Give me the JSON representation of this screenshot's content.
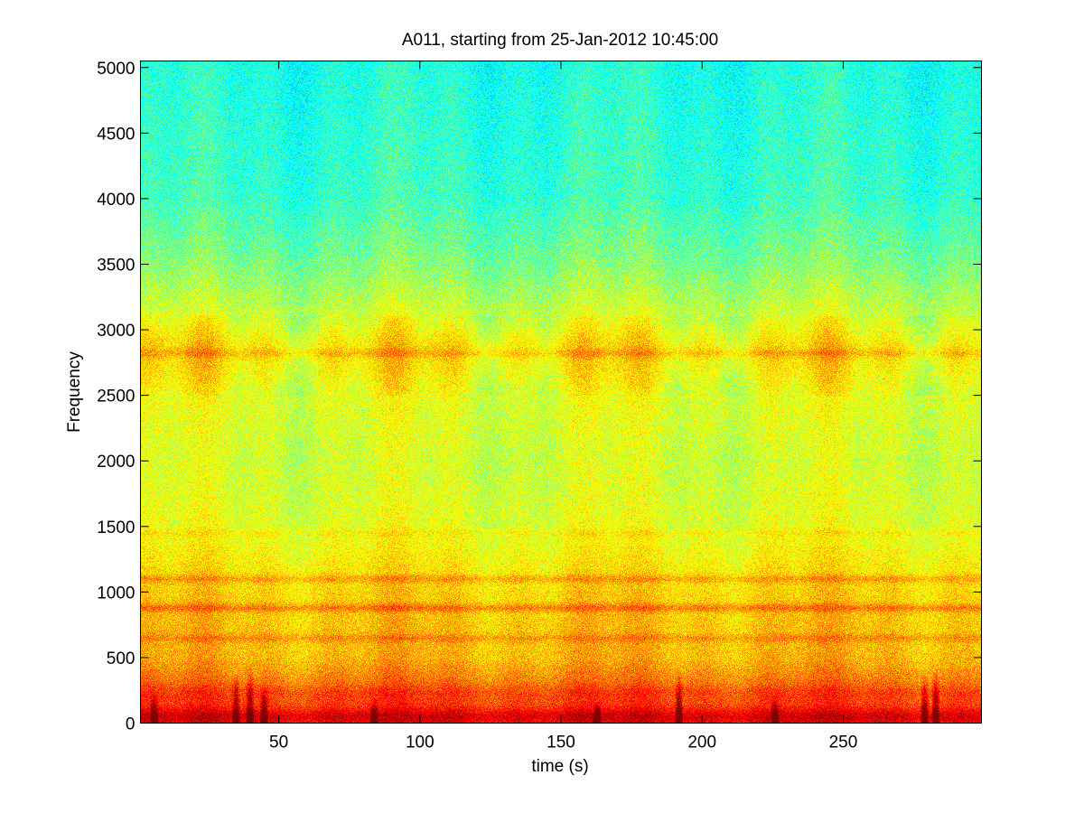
{
  "chart_data": {
    "type": "heatmap",
    "title": "A011, starting from 25-Jan-2012 10:45:00",
    "xlabel": "time (s)",
    "ylabel": "Frequency",
    "xlim": [
      1,
      299
    ],
    "ylim": [
      0,
      5050
    ],
    "x_ticks": [
      {
        "value": 50,
        "label": "50"
      },
      {
        "value": 100,
        "label": "100"
      },
      {
        "value": 150,
        "label": "150"
      },
      {
        "value": 200,
        "label": "200"
      },
      {
        "value": 250,
        "label": "250"
      }
    ],
    "y_ticks": [
      {
        "value": 0,
        "label": "0"
      },
      {
        "value": 500,
        "label": "500"
      },
      {
        "value": 1000,
        "label": "1000"
      },
      {
        "value": 1500,
        "label": "1500"
      },
      {
        "value": 2000,
        "label": "2000"
      },
      {
        "value": 2500,
        "label": "2500"
      },
      {
        "value": 3000,
        "label": "3000"
      },
      {
        "value": 3500,
        "label": "3500"
      },
      {
        "value": 4000,
        "label": "4000"
      },
      {
        "value": 4500,
        "label": "4500"
      },
      {
        "value": 5000,
        "label": "5000"
      }
    ],
    "colormap": "jet",
    "colorbar": false,
    "grid": false,
    "intensity_profile": [
      {
        "frequency": 0,
        "level": 0.86
      },
      {
        "frequency": 200,
        "level": 0.8
      },
      {
        "frequency": 500,
        "level": 0.7
      },
      {
        "frequency": 900,
        "level": 0.68
      },
      {
        "frequency": 1100,
        "level": 0.66
      },
      {
        "frequency": 1500,
        "level": 0.6
      },
      {
        "frequency": 2000,
        "level": 0.58
      },
      {
        "frequency": 2500,
        "level": 0.6
      },
      {
        "frequency": 2850,
        "level": 0.66
      },
      {
        "frequency": 3100,
        "level": 0.58
      },
      {
        "frequency": 3500,
        "level": 0.5
      },
      {
        "frequency": 4000,
        "level": 0.43
      },
      {
        "frequency": 5050,
        "level": 0.4
      }
    ],
    "bands": [
      {
        "frequency": 50,
        "level": 0.92
      },
      {
        "frequency": 220,
        "level": 0.82
      },
      {
        "frequency": 650,
        "level": 0.74
      },
      {
        "frequency": 880,
        "level": 0.76
      },
      {
        "frequency": 1100,
        "level": 0.72
      },
      {
        "frequency": 1450,
        "level": 0.64
      },
      {
        "frequency": 2820,
        "level": 0.7
      }
    ],
    "transients": [
      {
        "time": 6,
        "max_frequency": 250
      },
      {
        "time": 35,
        "max_frequency": 380
      },
      {
        "time": 40,
        "max_frequency": 420
      },
      {
        "time": 45,
        "max_frequency": 300
      },
      {
        "time": 84,
        "max_frequency": 200
      },
      {
        "time": 163,
        "max_frequency": 180
      },
      {
        "time": 192,
        "max_frequency": 420
      },
      {
        "time": 226,
        "max_frequency": 220
      },
      {
        "time": 279,
        "max_frequency": 380
      },
      {
        "time": 283,
        "max_frequency": 420
      }
    ]
  }
}
